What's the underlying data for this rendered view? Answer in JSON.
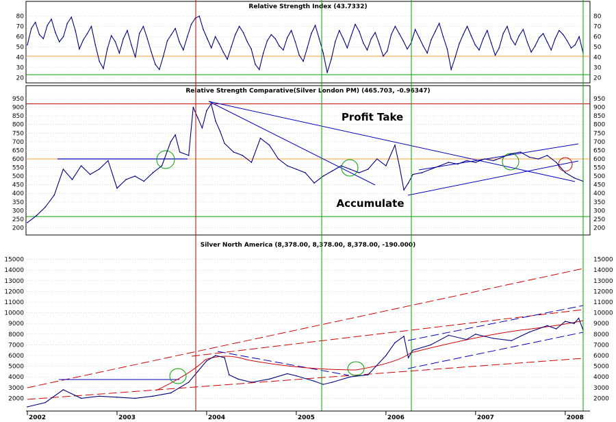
{
  "chart_data": [
    {
      "type": "line",
      "title": "Relative Strength Index (43.7332)",
      "yticks": [
        20,
        30,
        40,
        50,
        60,
        70,
        80
      ],
      "ylim": [
        17,
        85
      ],
      "reference_lines": [
        {
          "y": 41,
          "color": "#f0a040"
        },
        {
          "y": 23,
          "color": "#00a000"
        }
      ],
      "series": [
        {
          "color": "#000080",
          "values": [
            52,
            68,
            74,
            62,
            58,
            71,
            77,
            64,
            55,
            60,
            73,
            79,
            66,
            48,
            57,
            63,
            70,
            52,
            36,
            29,
            48,
            61,
            55,
            44,
            58,
            66,
            52,
            40,
            63,
            70,
            58,
            45,
            33,
            28,
            41,
            56,
            62,
            68,
            55,
            47,
            60,
            72,
            78,
            80,
            67,
            58,
            49,
            60,
            53,
            45,
            38,
            50,
            62,
            70,
            64,
            55,
            48,
            33,
            28,
            44,
            56,
            62,
            58,
            51,
            47,
            59,
            66,
            55,
            42,
            36,
            49,
            63,
            71,
            58,
            44,
            25,
            38,
            55,
            66,
            58,
            49,
            61,
            72,
            65,
            54,
            47,
            58,
            64,
            53,
            41,
            46,
            62,
            70,
            63,
            56,
            48,
            54,
            67,
            59,
            51,
            44,
            57,
            65,
            73,
            60,
            48,
            28,
            40,
            53,
            62,
            70,
            61,
            52,
            47,
            58,
            66,
            54,
            42,
            49,
            63,
            70,
            58,
            52,
            61,
            67,
            55,
            45,
            51,
            59,
            63,
            55,
            47,
            58,
            66,
            62,
            56,
            49,
            52,
            60,
            44
          ]
        }
      ],
      "x_range": [
        2002.0,
        2008.2
      ]
    },
    {
      "type": "line",
      "title": "Relative Strength Comparative(Silver London PM) (465.703, -0.96347)",
      "yticks": [
        200,
        250,
        300,
        350,
        400,
        450,
        500,
        550,
        600,
        650,
        700,
        750,
        800,
        850,
        900,
        950
      ],
      "ylim": [
        170,
        970
      ],
      "annotations": [
        {
          "text": "Profit Take",
          "x": 2006.0,
          "y": 795
        },
        {
          "text": "Accumulate",
          "x": 2005.85,
          "y": 305
        }
      ],
      "reference_lines": [
        {
          "y": 920,
          "color": "#c00000"
        },
        {
          "y": 600,
          "color": "#f0a040"
        },
        {
          "y": 265,
          "color": "#00a000"
        }
      ],
      "series": [
        {
          "color": "#000080",
          "x": [
            2002.0,
            2002.1,
            2002.2,
            2002.3,
            2002.4,
            2002.5,
            2002.6,
            2002.7,
            2002.8,
            2002.9,
            2003.0,
            2003.1,
            2003.2,
            2003.3,
            2003.4,
            2003.5,
            2003.6,
            2003.65,
            2003.7,
            2003.8,
            2003.85,
            2003.9,
            2003.95,
            2004.0,
            2004.05,
            2004.1,
            2004.15,
            2004.2,
            2004.3,
            2004.4,
            2004.5,
            2004.6,
            2004.7,
            2004.8,
            2004.9,
            2005.0,
            2005.1,
            2005.2,
            2005.3,
            2005.4,
            2005.5,
            2005.6,
            2005.7,
            2005.8,
            2005.9,
            2006.0,
            2006.1,
            2006.15,
            2006.2,
            2006.25,
            2006.3,
            2006.4,
            2006.5,
            2006.6,
            2006.7,
            2006.8,
            2006.9,
            2007.0,
            2007.1,
            2007.2,
            2007.3,
            2007.4,
            2007.5,
            2007.6,
            2007.7,
            2007.8,
            2007.9,
            2008.0,
            2008.1,
            2008.2
          ],
          "values": [
            230,
            270,
            320,
            390,
            540,
            480,
            560,
            510,
            540,
            590,
            430,
            480,
            500,
            470,
            520,
            560,
            700,
            740,
            640,
            620,
            900,
            840,
            780,
            880,
            920,
            820,
            760,
            690,
            640,
            620,
            580,
            720,
            680,
            600,
            560,
            540,
            520,
            460,
            500,
            530,
            560,
            540,
            520,
            540,
            600,
            560,
            680,
            560,
            420,
            460,
            510,
            520,
            540,
            560,
            580,
            570,
            590,
            580,
            600,
            590,
            610,
            630,
            640,
            610,
            600,
            620,
            580,
            520,
            490,
            470
          ]
        }
      ],
      "x_range": [
        2002.0,
        2008.2
      ]
    },
    {
      "type": "line",
      "title": "Silver North America (8,378.00, 8,378.00, 8,378.00, -190.000)",
      "yticks": [
        2000,
        3000,
        4000,
        5000,
        6000,
        7000,
        8000,
        9000,
        10000,
        11000,
        12000,
        13000,
        14000,
        15000
      ],
      "ylim": [
        1000,
        16000
      ],
      "x_ticks": [
        "2002",
        "2003",
        "2004",
        "2005",
        "2006",
        "2007",
        "2008"
      ],
      "series": [
        {
          "color": "#000080",
          "x": [
            2002.0,
            2002.2,
            2002.4,
            2002.6,
            2002.8,
            2003.0,
            2003.2,
            2003.4,
            2003.6,
            2003.8,
            2003.9,
            2004.0,
            2004.1,
            2004.2,
            2004.25,
            2004.35,
            2004.5,
            2004.7,
            2004.9,
            2005.0,
            2005.2,
            2005.3,
            2005.4,
            2005.6,
            2005.8,
            2006.0,
            2006.1,
            2006.2,
            2006.25,
            2006.3,
            2006.5,
            2006.7,
            2006.9,
            2007.0,
            2007.2,
            2007.4,
            2007.6,
            2007.8,
            2007.9,
            2008.0,
            2008.1,
            2008.15,
            2008.2
          ],
          "values": [
            1200,
            1600,
            2800,
            2000,
            2200,
            2100,
            2000,
            2200,
            2500,
            3500,
            4500,
            5500,
            6000,
            5800,
            4200,
            3800,
            3500,
            3800,
            4300,
            4100,
            3600,
            3300,
            3500,
            4000,
            4200,
            6000,
            7200,
            7800,
            5800,
            6500,
            7000,
            7900,
            7500,
            8000,
            7600,
            7400,
            8200,
            8800,
            8500,
            9200,
            9000,
            9500,
            8378
          ]
        }
      ],
      "x_range": [
        2002.0,
        2008.2
      ]
    }
  ]
}
